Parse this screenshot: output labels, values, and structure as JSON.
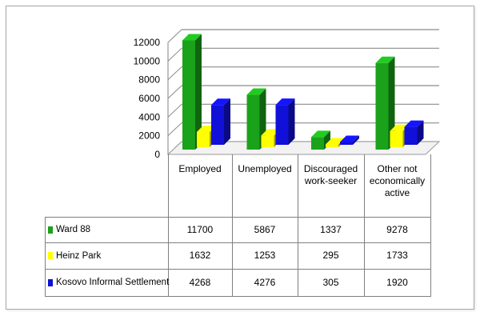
{
  "chart_data": {
    "type": "bar",
    "categories": [
      "Employed",
      "Unemployed",
      "Discouraged work-seeker",
      "Other not economically active"
    ],
    "category_lines": [
      [
        "Employed"
      ],
      [
        "Unemployed"
      ],
      [
        "Discouraged",
        "work-seeker"
      ],
      [
        "Other not",
        "economically",
        "active"
      ]
    ],
    "series": [
      {
        "name": "Ward 88",
        "values": [
          11700,
          5867,
          1337,
          9278
        ],
        "color": "#1aa21a"
      },
      {
        "name": "Heinz Park",
        "values": [
          1632,
          1253,
          295,
          1733
        ],
        "color": "#ffff00"
      },
      {
        "name": "Kosovo Informal Settlement",
        "values": [
          4268,
          4276,
          305,
          1920
        ],
        "color": "#1010d8"
      }
    ],
    "ylim": [
      0,
      12000
    ],
    "yticks": [
      "0",
      "2000",
      "4000",
      "6000",
      "8000",
      "10000",
      "12000"
    ],
    "grid": true,
    "style": "3d-clustered-column-with-data-table"
  }
}
